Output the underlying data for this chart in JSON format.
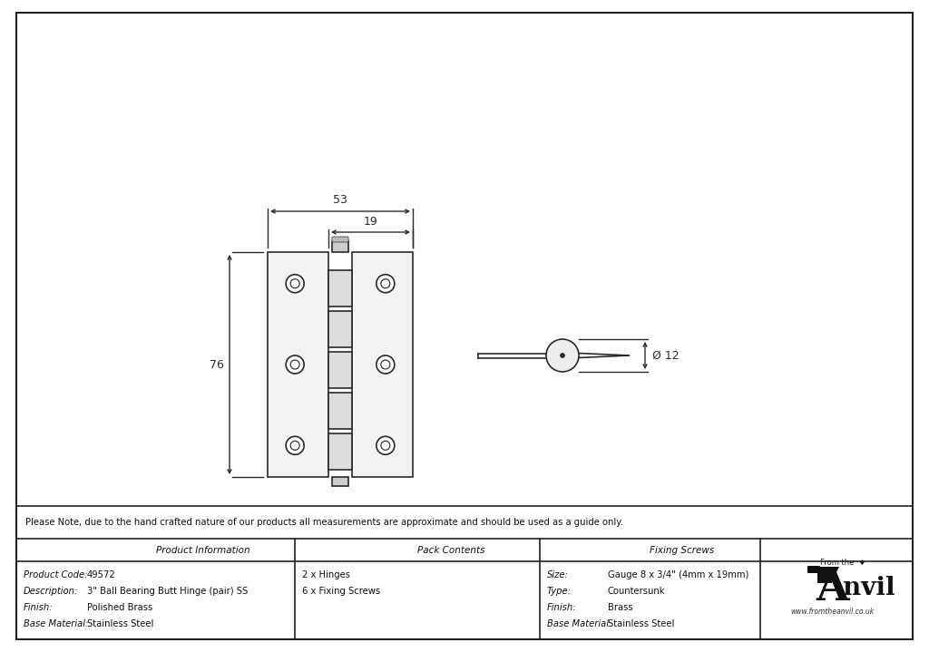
{
  "bg_color": "#ffffff",
  "line_color": "#2a2a2a",
  "note_text": "Please Note, due to the hand crafted nature of our products all measurements are approximate and should be used as a guide only.",
  "product_info": {
    "header": "Product Information",
    "fields": [
      [
        "Product Code:",
        "49572"
      ],
      [
        "Description:",
        "3\" Ball Bearing Butt Hinge (pair) SS"
      ],
      [
        "Finish:",
        "Polished Brass"
      ],
      [
        "Base Material:",
        "Stainless Steel"
      ]
    ]
  },
  "pack_contents": {
    "header": "Pack Contents",
    "items": [
      "2 x Hinges",
      "6 x Fixing Screws"
    ]
  },
  "fixing_screws": {
    "header": "Fixing Screws",
    "fields": [
      [
        "Size:",
        "Gauge 8 x 3/4\" (4mm x 19mm)"
      ],
      [
        "Type:",
        "Countersunk"
      ],
      [
        "Finish:",
        "Brass"
      ],
      [
        "Base Material:",
        "Stainless Steel"
      ]
    ]
  },
  "dim_53": "53",
  "dim_19": "19",
  "dim_76": "76",
  "dim_12": "Ø 12"
}
